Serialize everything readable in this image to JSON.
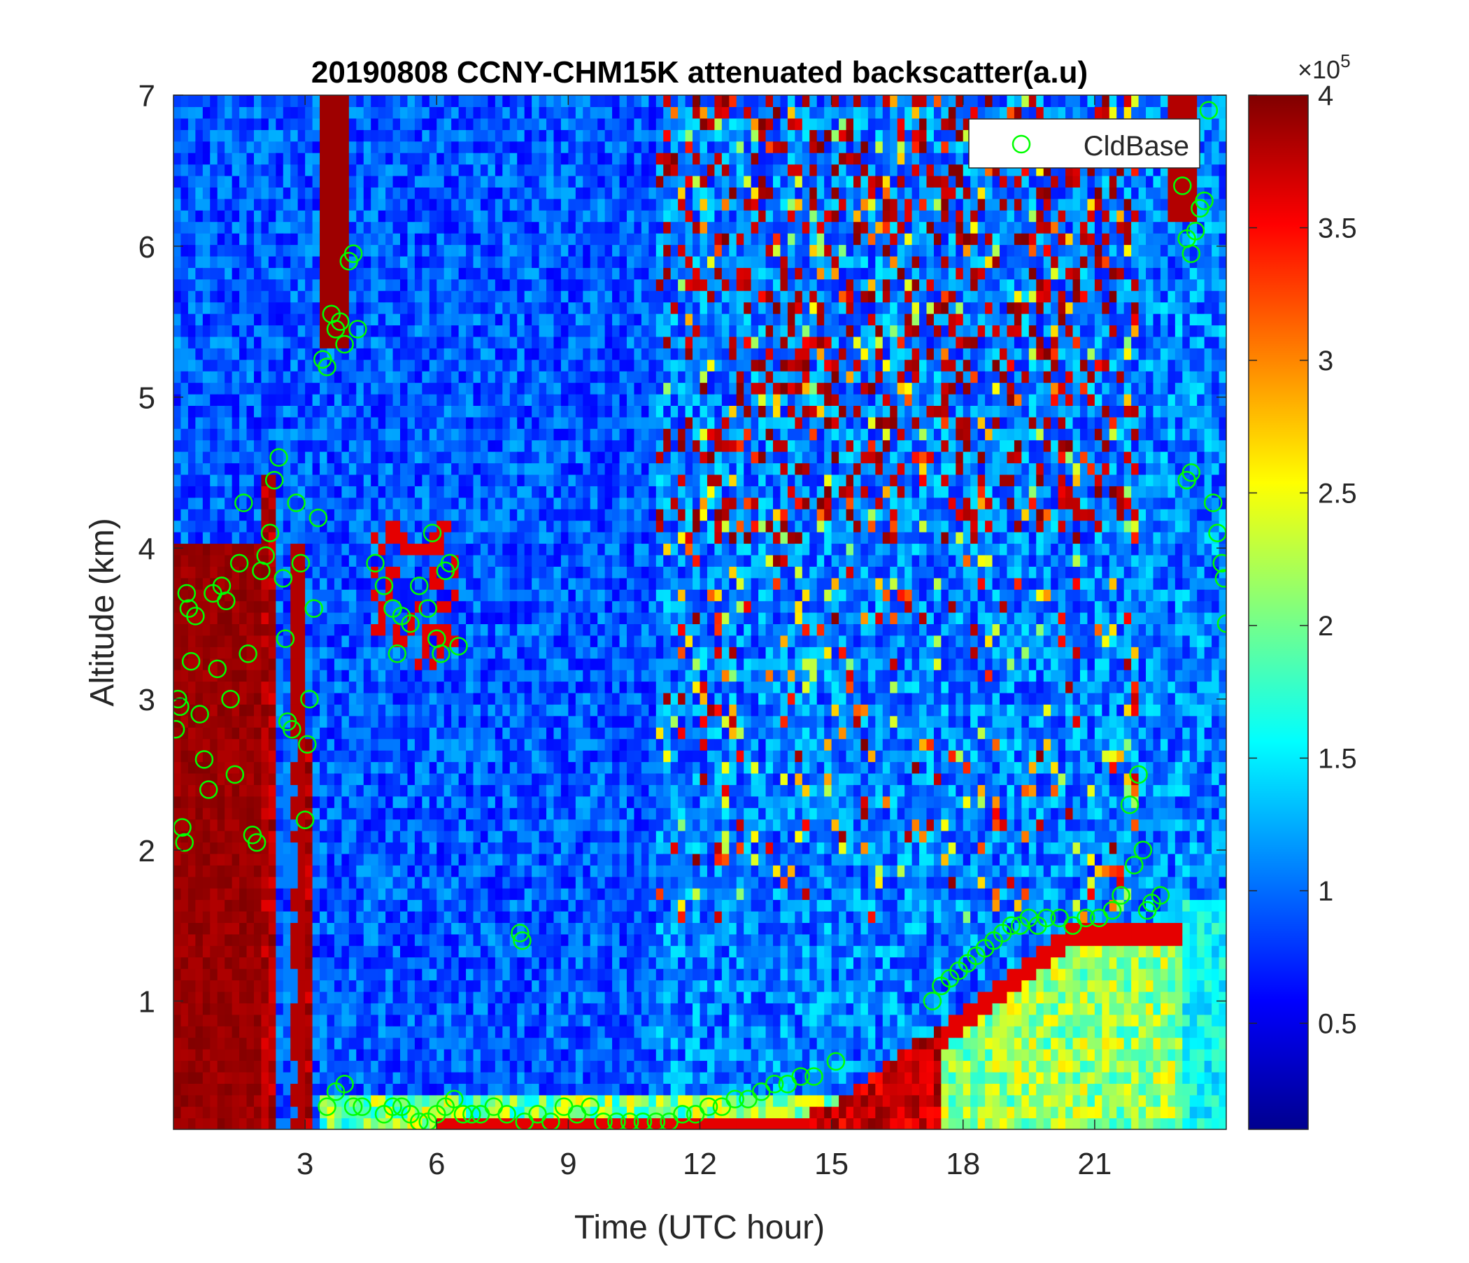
{
  "chart_data": {
    "type": "heatmap",
    "title": "20190808 CCNY-CHM15K attenuated backscatter(a.u)",
    "xlabel": "Time (UTC hour)",
    "ylabel": "Altitude (km)",
    "xlim": [
      0,
      24
    ],
    "ylim": [
      0.15,
      7
    ],
    "xticks": [
      3,
      6,
      9,
      12,
      15,
      18,
      21
    ],
    "xtick_labels": [
      "3",
      "6",
      "9",
      "12",
      "15",
      "18",
      "21"
    ],
    "yticks": [
      1,
      2,
      3,
      4,
      5,
      6,
      7
    ],
    "ytick_labels": [
      "1",
      "2",
      "3",
      "4",
      "5",
      "6",
      "7"
    ],
    "colorbar": {
      "clim": [
        10000,
        400000
      ],
      "ticks": [
        50000,
        100000,
        150000,
        200000,
        250000,
        300000,
        350000,
        400000
      ],
      "tick_labels": [
        "0.5",
        "1",
        "1.5",
        "2",
        "2.5",
        "3",
        "3.5",
        "4"
      ],
      "exponent_label": "×10",
      "exponent_power": "5",
      "colormap": "jet"
    },
    "legend": {
      "position": "top-right",
      "entries": [
        "CldBase"
      ]
    },
    "overlay_series": [
      {
        "name": "CldBase",
        "marker": "open-circle",
        "color": "#00ff00",
        "points": [
          [
            0.05,
            2.8
          ],
          [
            0.1,
            3.0
          ],
          [
            0.15,
            2.95
          ],
          [
            0.2,
            2.15
          ],
          [
            0.25,
            2.05
          ],
          [
            0.3,
            3.7
          ],
          [
            0.35,
            3.6
          ],
          [
            0.4,
            3.25
          ],
          [
            0.5,
            3.55
          ],
          [
            0.6,
            2.9
          ],
          [
            0.7,
            2.6
          ],
          [
            0.8,
            2.4
          ],
          [
            0.9,
            3.7
          ],
          [
            1.0,
            3.2
          ],
          [
            1.1,
            3.75
          ],
          [
            1.2,
            3.65
          ],
          [
            1.3,
            3.0
          ],
          [
            1.4,
            2.5
          ],
          [
            1.5,
            3.9
          ],
          [
            1.6,
            4.3
          ],
          [
            1.7,
            3.3
          ],
          [
            1.8,
            2.1
          ],
          [
            1.9,
            2.05
          ],
          [
            2.0,
            3.85
          ],
          [
            2.1,
            3.95
          ],
          [
            2.2,
            4.1
          ],
          [
            2.3,
            4.45
          ],
          [
            2.4,
            4.6
          ],
          [
            2.5,
            3.8
          ],
          [
            2.55,
            3.4
          ],
          [
            2.6,
            2.85
          ],
          [
            2.7,
            2.8
          ],
          [
            2.8,
            4.3
          ],
          [
            2.9,
            3.9
          ],
          [
            3.0,
            2.2
          ],
          [
            3.05,
            2.7
          ],
          [
            3.1,
            3.0
          ],
          [
            3.2,
            3.6
          ],
          [
            3.3,
            4.2
          ],
          [
            3.4,
            5.25
          ],
          [
            3.5,
            5.2
          ],
          [
            3.6,
            5.55
          ],
          [
            3.7,
            5.45
          ],
          [
            3.8,
            5.5
          ],
          [
            3.9,
            5.35
          ],
          [
            4.0,
            5.9
          ],
          [
            4.1,
            5.95
          ],
          [
            4.2,
            5.45
          ],
          [
            3.5,
            0.3
          ],
          [
            3.7,
            0.4
          ],
          [
            3.9,
            0.45
          ],
          [
            4.1,
            0.3
          ],
          [
            4.3,
            0.3
          ],
          [
            4.6,
            3.9
          ],
          [
            4.8,
            3.75
          ],
          [
            5.0,
            3.6
          ],
          [
            5.1,
            3.3
          ],
          [
            5.2,
            3.55
          ],
          [
            5.4,
            3.5
          ],
          [
            5.6,
            3.75
          ],
          [
            5.8,
            3.6
          ],
          [
            5.9,
            4.1
          ],
          [
            6.0,
            3.4
          ],
          [
            6.1,
            3.3
          ],
          [
            6.2,
            3.85
          ],
          [
            6.3,
            3.9
          ],
          [
            6.5,
            3.35
          ],
          [
            4.8,
            0.25
          ],
          [
            5.0,
            0.3
          ],
          [
            5.2,
            0.3
          ],
          [
            5.4,
            0.25
          ],
          [
            5.6,
            0.2
          ],
          [
            5.8,
            0.2
          ],
          [
            6.0,
            0.25
          ],
          [
            6.2,
            0.3
          ],
          [
            6.4,
            0.35
          ],
          [
            6.6,
            0.25
          ],
          [
            6.8,
            0.25
          ],
          [
            7.0,
            0.25
          ],
          [
            7.3,
            0.3
          ],
          [
            7.6,
            0.25
          ],
          [
            7.9,
            1.45
          ],
          [
            7.95,
            1.4
          ],
          [
            8.0,
            0.2
          ],
          [
            8.3,
            0.25
          ],
          [
            8.6,
            0.2
          ],
          [
            8.9,
            0.3
          ],
          [
            9.2,
            0.25
          ],
          [
            9.5,
            0.3
          ],
          [
            9.8,
            0.2
          ],
          [
            10.1,
            0.2
          ],
          [
            10.4,
            0.2
          ],
          [
            10.7,
            0.2
          ],
          [
            11.0,
            0.2
          ],
          [
            11.3,
            0.2
          ],
          [
            11.6,
            0.25
          ],
          [
            11.9,
            0.25
          ],
          [
            12.2,
            0.3
          ],
          [
            12.5,
            0.3
          ],
          [
            12.8,
            0.35
          ],
          [
            13.1,
            0.35
          ],
          [
            13.4,
            0.4
          ],
          [
            13.7,
            0.45
          ],
          [
            14.0,
            0.45
          ],
          [
            14.3,
            0.5
          ],
          [
            14.6,
            0.5
          ],
          [
            15.1,
            0.6
          ],
          [
            17.3,
            1.0
          ],
          [
            17.5,
            1.1
          ],
          [
            17.7,
            1.15
          ],
          [
            17.9,
            1.2
          ],
          [
            18.1,
            1.25
          ],
          [
            18.3,
            1.3
          ],
          [
            18.5,
            1.35
          ],
          [
            18.7,
            1.4
          ],
          [
            18.9,
            1.45
          ],
          [
            19.1,
            1.5
          ],
          [
            19.3,
            1.5
          ],
          [
            19.5,
            1.55
          ],
          [
            19.7,
            1.5
          ],
          [
            19.9,
            1.55
          ],
          [
            20.2,
            1.55
          ],
          [
            20.5,
            1.5
          ],
          [
            20.8,
            1.55
          ],
          [
            21.1,
            1.55
          ],
          [
            21.4,
            1.6
          ],
          [
            21.6,
            1.7
          ],
          [
            21.8,
            2.3
          ],
          [
            21.9,
            1.9
          ],
          [
            22.0,
            2.5
          ],
          [
            22.1,
            2.0
          ],
          [
            22.2,
            1.6
          ],
          [
            22.3,
            1.65
          ],
          [
            22.5,
            1.7
          ],
          [
            23.0,
            6.4
          ],
          [
            23.1,
            6.05
          ],
          [
            23.2,
            5.95
          ],
          [
            23.3,
            6.1
          ],
          [
            23.4,
            6.25
          ],
          [
            23.5,
            6.3
          ],
          [
            23.6,
            6.9
          ],
          [
            23.1,
            4.45
          ],
          [
            23.2,
            4.5
          ],
          [
            23.7,
            4.3
          ],
          [
            23.8,
            4.1
          ],
          [
            23.9,
            3.9
          ],
          [
            24.0,
            3.5
          ],
          [
            23.95,
            3.8
          ]
        ]
      }
    ]
  }
}
